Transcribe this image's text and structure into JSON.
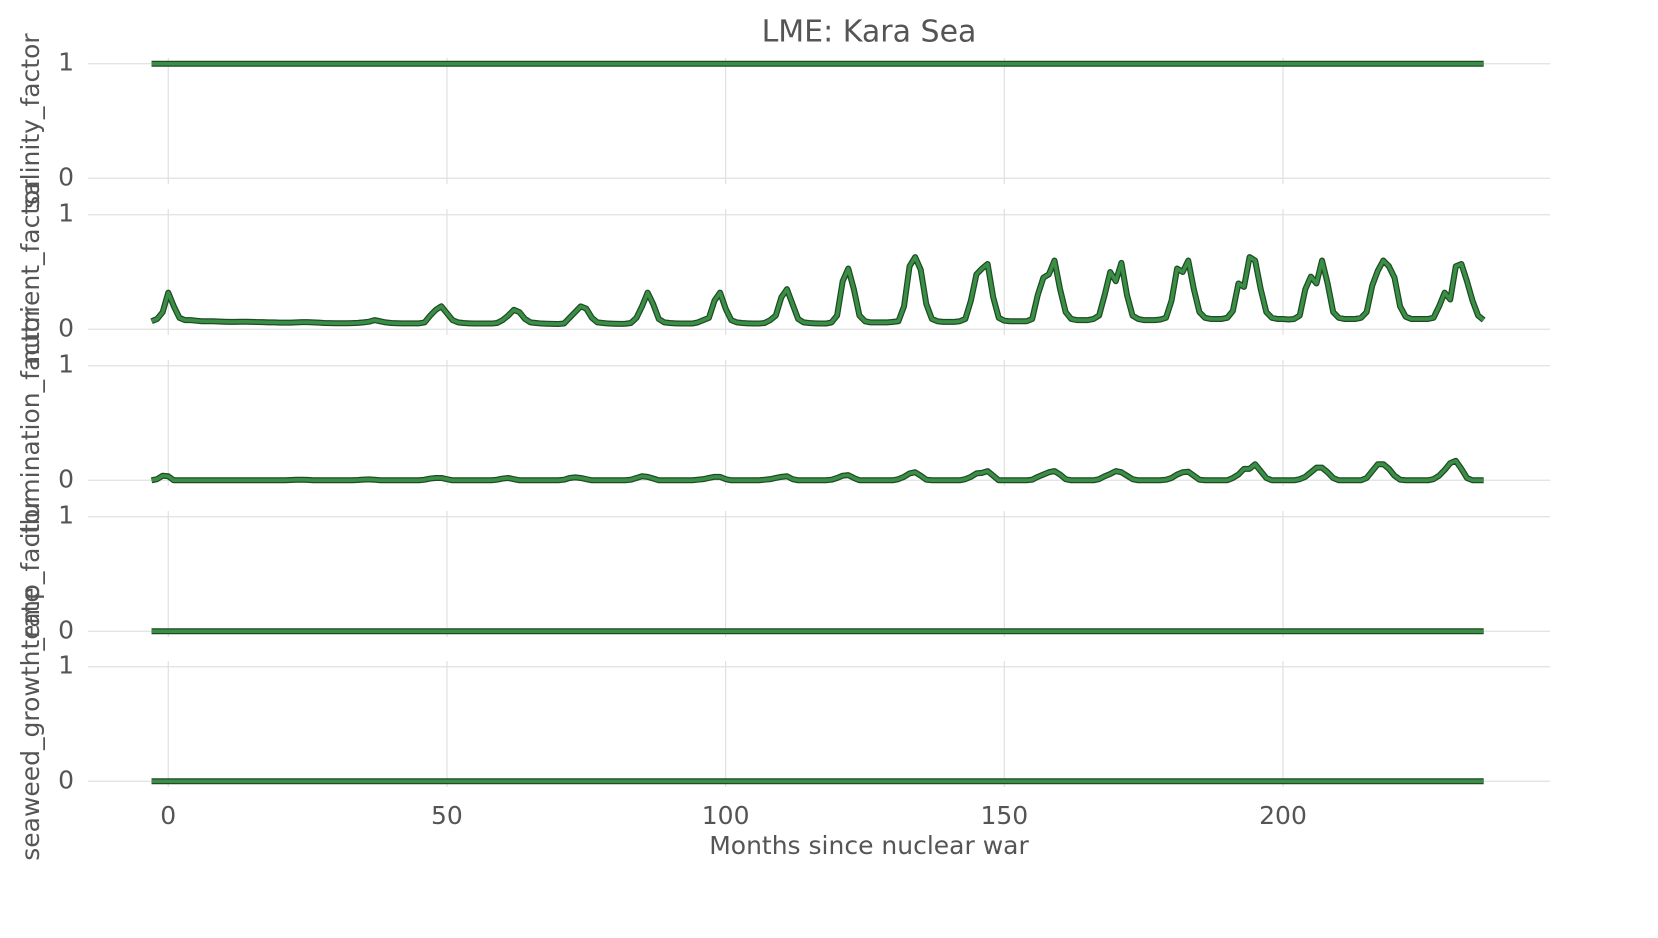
{
  "chart_data": [
    {
      "type": "line",
      "title": "LME: Kara Sea",
      "ylabel": "salinity_factor",
      "color": "#3a8f45",
      "x": [
        -3,
        236
      ],
      "values": [
        1,
        1
      ],
      "xlim": [
        -14.4,
        247.9
      ],
      "xticks": [
        0,
        50,
        100,
        150,
        200
      ],
      "ylim": [
        -0.05,
        1.05
      ],
      "yticks": [
        0,
        1
      ],
      "grid": true
    },
    {
      "type": "line",
      "ylabel": "nutrient_factor",
      "color": "#3a8f45",
      "x": [
        -3,
        -2,
        -1,
        0,
        1,
        2,
        3,
        4,
        5,
        6,
        7,
        8,
        9,
        10,
        11,
        12,
        13,
        14,
        15,
        16,
        17,
        18,
        19,
        20,
        21,
        22,
        23,
        24,
        25,
        26,
        27,
        28,
        29,
        30,
        31,
        32,
        33,
        34,
        35,
        36,
        37,
        38,
        39,
        40,
        41,
        42,
        43,
        44,
        45,
        46,
        47,
        48,
        49,
        50,
        51,
        52,
        53,
        54,
        55,
        56,
        57,
        58,
        59,
        60,
        61,
        62,
        63,
        64,
        65,
        66,
        67,
        68,
        69,
        70,
        71,
        72,
        73,
        74,
        75,
        76,
        77,
        78,
        79,
        80,
        81,
        82,
        83,
        84,
        85,
        86,
        87,
        88,
        89,
        90,
        91,
        92,
        93,
        94,
        95,
        96,
        97,
        98,
        99,
        100,
        101,
        102,
        103,
        104,
        105,
        106,
        107,
        108,
        109,
        110,
        111,
        112,
        113,
        114,
        115,
        116,
        117,
        118,
        119,
        120,
        121,
        122,
        123,
        124,
        125,
        126,
        127,
        128,
        129,
        130,
        131,
        132,
        133,
        134,
        135,
        136,
        137,
        138,
        139,
        140,
        141,
        142,
        143,
        144,
        145,
        146,
        147,
        148,
        149,
        150,
        151,
        152,
        153,
        154,
        155,
        156,
        157,
        158,
        159,
        160,
        161,
        162,
        163,
        164,
        165,
        166,
        167,
        168,
        169,
        170,
        171,
        172,
        173,
        174,
        175,
        176,
        177,
        178,
        179,
        180,
        181,
        182,
        183,
        184,
        185,
        186,
        187,
        188,
        189,
        190,
        191,
        192,
        193,
        194,
        195,
        196,
        197,
        198,
        199,
        200,
        201,
        202,
        203,
        204,
        205,
        206,
        207,
        208,
        209,
        210,
        211,
        212,
        213,
        214,
        215,
        216,
        217,
        218,
        219,
        220,
        221,
        222,
        223,
        224,
        225,
        226,
        227,
        228,
        229,
        230,
        231,
        232,
        233,
        234,
        235,
        236
      ],
      "values": [
        0.07,
        0.09,
        0.15,
        0.32,
        0.2,
        0.1,
        0.08,
        0.08,
        0.075,
        0.07,
        0.07,
        0.07,
        0.068,
        0.066,
        0.065,
        0.065,
        0.066,
        0.066,
        0.065,
        0.063,
        0.062,
        0.06,
        0.06,
        0.058,
        0.058,
        0.058,
        0.06,
        0.062,
        0.062,
        0.06,
        0.058,
        0.055,
        0.054,
        0.053,
        0.053,
        0.053,
        0.054,
        0.056,
        0.06,
        0.066,
        0.08,
        0.07,
        0.06,
        0.055,
        0.053,
        0.052,
        0.051,
        0.051,
        0.052,
        0.06,
        0.12,
        0.17,
        0.2,
        0.14,
        0.08,
        0.06,
        0.055,
        0.052,
        0.05,
        0.05,
        0.05,
        0.05,
        0.055,
        0.08,
        0.12,
        0.17,
        0.15,
        0.09,
        0.06,
        0.055,
        0.05,
        0.048,
        0.047,
        0.046,
        0.05,
        0.1,
        0.15,
        0.2,
        0.18,
        0.1,
        0.06,
        0.055,
        0.05,
        0.048,
        0.047,
        0.048,
        0.055,
        0.1,
        0.2,
        0.32,
        0.22,
        0.09,
        0.06,
        0.055,
        0.052,
        0.05,
        0.05,
        0.05,
        0.06,
        0.08,
        0.1,
        0.25,
        0.32,
        0.18,
        0.08,
        0.06,
        0.055,
        0.052,
        0.05,
        0.05,
        0.055,
        0.08,
        0.12,
        0.28,
        0.35,
        0.22,
        0.09,
        0.06,
        0.055,
        0.052,
        0.05,
        0.05,
        0.06,
        0.12,
        0.42,
        0.53,
        0.35,
        0.12,
        0.07,
        0.06,
        0.06,
        0.06,
        0.06,
        0.065,
        0.07,
        0.2,
        0.55,
        0.63,
        0.52,
        0.22,
        0.09,
        0.07,
        0.065,
        0.065,
        0.065,
        0.07,
        0.09,
        0.25,
        0.48,
        0.53,
        0.57,
        0.28,
        0.1,
        0.075,
        0.07,
        0.07,
        0.07,
        0.07,
        0.09,
        0.3,
        0.45,
        0.48,
        0.6,
        0.35,
        0.15,
        0.09,
        0.08,
        0.08,
        0.08,
        0.09,
        0.12,
        0.3,
        0.5,
        0.42,
        0.58,
        0.3,
        0.12,
        0.09,
        0.08,
        0.08,
        0.08,
        0.085,
        0.1,
        0.25,
        0.53,
        0.5,
        0.6,
        0.35,
        0.15,
        0.1,
        0.09,
        0.09,
        0.09,
        0.1,
        0.16,
        0.4,
        0.37,
        0.63,
        0.6,
        0.35,
        0.15,
        0.1,
        0.09,
        0.09,
        0.085,
        0.09,
        0.12,
        0.35,
        0.46,
        0.4,
        0.6,
        0.4,
        0.15,
        0.1,
        0.09,
        0.09,
        0.09,
        0.1,
        0.15,
        0.38,
        0.51,
        0.6,
        0.55,
        0.45,
        0.2,
        0.11,
        0.09,
        0.09,
        0.09,
        0.09,
        0.1,
        0.2,
        0.32,
        0.26,
        0.55,
        0.57,
        0.42,
        0.25,
        0.12,
        0.08
      ],
      "xlim": [
        -14.4,
        247.9
      ],
      "xticks": [
        0,
        50,
        100,
        150,
        200
      ],
      "ylim": [
        -0.05,
        1.05
      ],
      "yticks": [
        0,
        1
      ],
      "grid": true
    },
    {
      "type": "line",
      "ylabel": "illumination_factor",
      "color": "#3a8f45",
      "x": [
        -3,
        -2,
        -1,
        0,
        1,
        2,
        3,
        4,
        5,
        6,
        7,
        8,
        9,
        10,
        11,
        12,
        13,
        14,
        15,
        16,
        17,
        18,
        19,
        20,
        21,
        22,
        23,
        24,
        25,
        26,
        27,
        28,
        29,
        30,
        31,
        32,
        33,
        34,
        35,
        36,
        37,
        38,
        39,
        40,
        41,
        42,
        43,
        44,
        45,
        46,
        47,
        48,
        49,
        50,
        51,
        52,
        53,
        54,
        55,
        56,
        57,
        58,
        59,
        60,
        61,
        62,
        63,
        64,
        65,
        66,
        67,
        68,
        69,
        70,
        71,
        72,
        73,
        74,
        75,
        76,
        77,
        78,
        79,
        80,
        81,
        82,
        83,
        84,
        85,
        86,
        87,
        88,
        89,
        90,
        91,
        92,
        93,
        94,
        95,
        96,
        97,
        98,
        99,
        100,
        101,
        102,
        103,
        104,
        105,
        106,
        107,
        108,
        109,
        110,
        111,
        112,
        113,
        114,
        115,
        116,
        117,
        118,
        119,
        120,
        121,
        122,
        123,
        124,
        125,
        126,
        127,
        128,
        129,
        130,
        131,
        132,
        133,
        134,
        135,
        136,
        137,
        138,
        139,
        140,
        141,
        142,
        143,
        144,
        145,
        146,
        147,
        148,
        149,
        150,
        151,
        152,
        153,
        154,
        155,
        156,
        157,
        158,
        159,
        160,
        161,
        162,
        163,
        164,
        165,
        166,
        167,
        168,
        169,
        170,
        171,
        172,
        173,
        174,
        175,
        176,
        177,
        178,
        179,
        180,
        181,
        182,
        183,
        184,
        185,
        186,
        187,
        188,
        189,
        190,
        191,
        192,
        193,
        194,
        195,
        196,
        197,
        198,
        199,
        200,
        201,
        202,
        203,
        204,
        205,
        206,
        207,
        208,
        209,
        210,
        211,
        212,
        213,
        214,
        215,
        216,
        217,
        218,
        219,
        220,
        221,
        222,
        223,
        224,
        225,
        226,
        227,
        228,
        229,
        230,
        231,
        232,
        233,
        234,
        235,
        236
      ],
      "values": [
        0,
        0.01,
        0.04,
        0.035,
        0,
        0,
        0,
        0,
        0,
        0,
        0,
        0,
        0,
        0,
        0,
        0,
        0,
        0,
        0,
        0,
        0,
        0,
        0,
        0,
        0,
        0.002,
        0.005,
        0.005,
        0.003,
        0,
        0,
        0,
        0,
        0,
        0,
        0,
        0,
        0.002,
        0.006,
        0.008,
        0.005,
        0,
        0,
        0,
        0,
        0,
        0,
        0,
        0,
        0.005,
        0.015,
        0.02,
        0.02,
        0.01,
        0,
        0,
        0,
        0,
        0,
        0,
        0,
        0,
        0.005,
        0.015,
        0.02,
        0.01,
        0,
        0,
        0,
        0,
        0,
        0,
        0,
        0,
        0.005,
        0.02,
        0.025,
        0.02,
        0.01,
        0,
        0,
        0,
        0,
        0,
        0,
        0,
        0.005,
        0.02,
        0.035,
        0.03,
        0.015,
        0,
        0,
        0,
        0,
        0,
        0,
        0,
        0.005,
        0.01,
        0.02,
        0.03,
        0.03,
        0.01,
        0,
        0,
        0,
        0,
        0,
        0,
        0.005,
        0.01,
        0.02,
        0.03,
        0.035,
        0.01,
        0,
        0,
        0,
        0,
        0,
        0,
        0.005,
        0.02,
        0.04,
        0.045,
        0.02,
        0,
        0,
        0,
        0,
        0,
        0,
        0,
        0.01,
        0.03,
        0.06,
        0.07,
        0.04,
        0.005,
        0,
        0,
        0,
        0,
        0,
        0,
        0.01,
        0.03,
        0.06,
        0.065,
        0.08,
        0.04,
        0,
        0,
        0,
        0,
        0,
        0,
        0.005,
        0.03,
        0.05,
        0.07,
        0.08,
        0.05,
        0.01,
        0,
        0,
        0,
        0,
        0,
        0.01,
        0.035,
        0.055,
        0.08,
        0.07,
        0.04,
        0.01,
        0,
        0,
        0,
        0,
        0,
        0.005,
        0.02,
        0.05,
        0.07,
        0.075,
        0.04,
        0.005,
        0,
        0,
        0,
        0,
        0,
        0.02,
        0.05,
        0.1,
        0.1,
        0.14,
        0.08,
        0.02,
        0,
        0,
        0,
        0,
        0,
        0.01,
        0.03,
        0.07,
        0.11,
        0.11,
        0.07,
        0.02,
        0,
        0,
        0,
        0,
        0,
        0.02,
        0.08,
        0.14,
        0.14,
        0.1,
        0.04,
        0.005,
        0,
        0,
        0,
        0,
        0,
        0.01,
        0.04,
        0.09,
        0.15,
        0.17,
        0.1,
        0.02,
        0,
        0,
        0
      ],
      "xlim": [
        -14.4,
        247.9
      ],
      "xticks": [
        0,
        50,
        100,
        150,
        200
      ],
      "ylim": [
        -0.05,
        1.05
      ],
      "yticks": [
        0,
        1
      ],
      "grid": true
    },
    {
      "type": "line",
      "ylabel": "temp_factor",
      "color": "#3a8f45",
      "x": [
        -3,
        236
      ],
      "values": [
        0,
        0
      ],
      "xlim": [
        -14.4,
        247.9
      ],
      "xticks": [
        0,
        50,
        100,
        150,
        200
      ],
      "ylim": [
        -0.05,
        1.05
      ],
      "yticks": [
        0,
        1
      ],
      "grid": true
    },
    {
      "type": "line",
      "ylabel": "seaweed_growth_rate",
      "xlabel": "Months since nuclear war",
      "color": "#3a8f45",
      "x": [
        -3,
        236
      ],
      "values": [
        0,
        0
      ],
      "xlim": [
        -14.4,
        247.9
      ],
      "xticks": [
        0,
        50,
        100,
        150,
        200
      ],
      "ylim": [
        -0.05,
        1.05
      ],
      "yticks": [
        0,
        1
      ],
      "grid": true
    }
  ]
}
